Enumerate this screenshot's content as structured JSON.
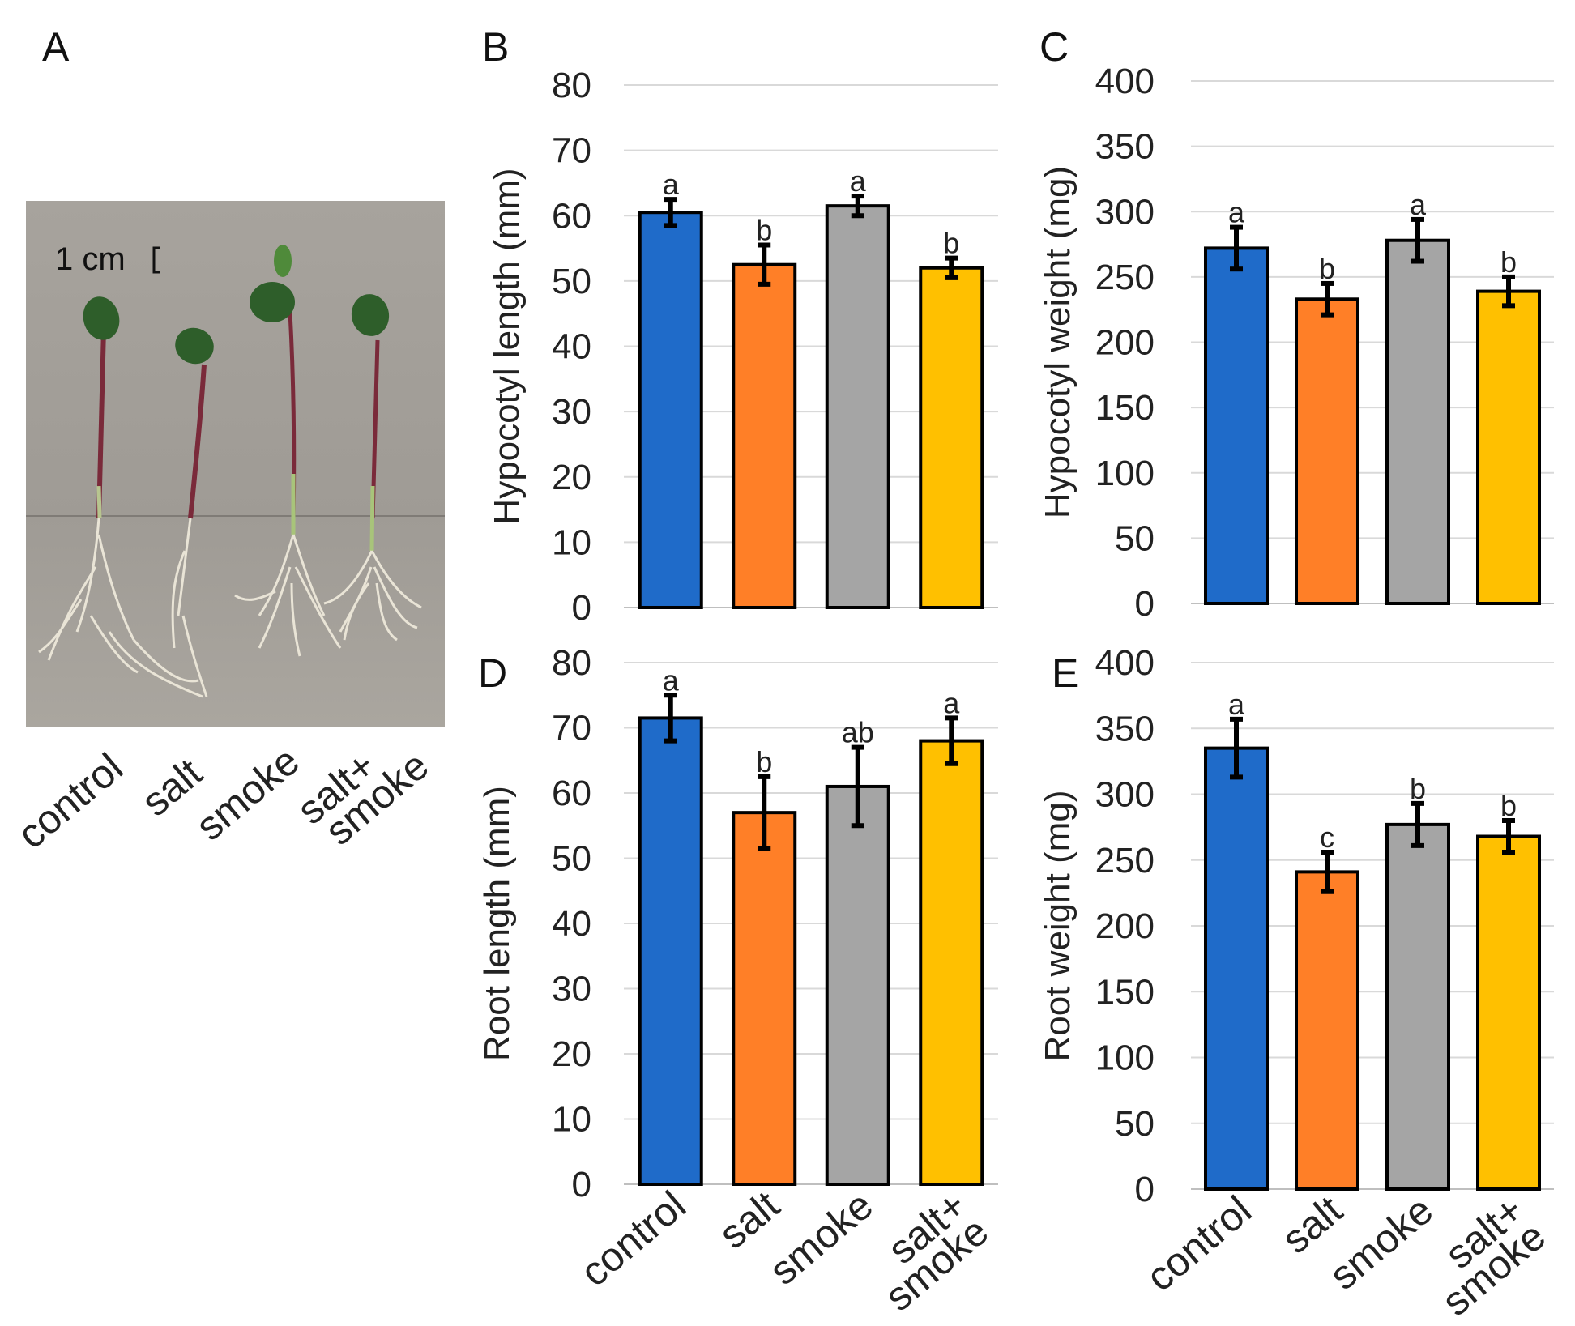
{
  "panel_a": {
    "letter": "A",
    "scale_label": "1 cm",
    "categories": [
      "control",
      "salt",
      "smoke",
      [
        "salt+",
        "smoke"
      ]
    ],
    "photo_description_bg": "#a29e98"
  },
  "colors": {
    "control": "#1f6bc9",
    "salt": "#ff7f27",
    "smoke": "#a5a5a5",
    "salt_smoke": "#ffc000"
  },
  "chart_data": [
    {
      "id": "B",
      "letter": "B",
      "type": "bar",
      "categories": [
        "control",
        "salt",
        "smoke",
        "salt+ smoke"
      ],
      "values": [
        60.5,
        52.5,
        61.5,
        52
      ],
      "errors": [
        2,
        3,
        1.5,
        1.5
      ],
      "significance": [
        "a",
        "b",
        "a",
        "b"
      ],
      "ylabel": "Hypocotyl  length (mm)",
      "ylim": [
        0,
        80
      ],
      "yticks": [
        0,
        10,
        20,
        30,
        40,
        50,
        60,
        70,
        80
      ],
      "show_xlabels": false
    },
    {
      "id": "C",
      "letter": "C",
      "type": "bar",
      "categories": [
        "control",
        "salt",
        "smoke",
        "salt+ smoke"
      ],
      "values": [
        272,
        233,
        278,
        239
      ],
      "errors": [
        16,
        12,
        16,
        11
      ],
      "significance": [
        "a",
        "b",
        "a",
        "b"
      ],
      "ylabel": "Hypocotyl  weight (mg)",
      "ylim": [
        0,
        400
      ],
      "yticks": [
        0,
        50,
        100,
        150,
        200,
        250,
        300,
        350,
        400
      ],
      "show_xlabels": false
    },
    {
      "id": "D",
      "letter": "D",
      "type": "bar",
      "categories": [
        "control",
        "salt",
        "smoke",
        "salt+ smoke"
      ],
      "values": [
        71.5,
        57,
        61,
        68
      ],
      "errors": [
        3.5,
        5.5,
        6,
        3.5
      ],
      "significance": [
        "a",
        "b",
        "ab",
        "a"
      ],
      "ylabel": "Root length  (mm)",
      "ylim": [
        0,
        80
      ],
      "yticks": [
        0,
        10,
        20,
        30,
        40,
        50,
        60,
        70,
        80
      ],
      "show_xlabels": true
    },
    {
      "id": "E",
      "letter": "E",
      "type": "bar",
      "categories": [
        "control",
        "salt",
        "smoke",
        "salt+ smoke"
      ],
      "values": [
        335,
        241,
        277,
        268
      ],
      "errors": [
        22,
        15,
        16,
        12
      ],
      "significance": [
        "a",
        "c",
        "b",
        "b"
      ],
      "ylabel": "Root weight (mg)",
      "ylim": [
        0,
        400
      ],
      "yticks": [
        0,
        50,
        100,
        150,
        200,
        250,
        300,
        350,
        400
      ],
      "show_xlabels": true
    }
  ]
}
